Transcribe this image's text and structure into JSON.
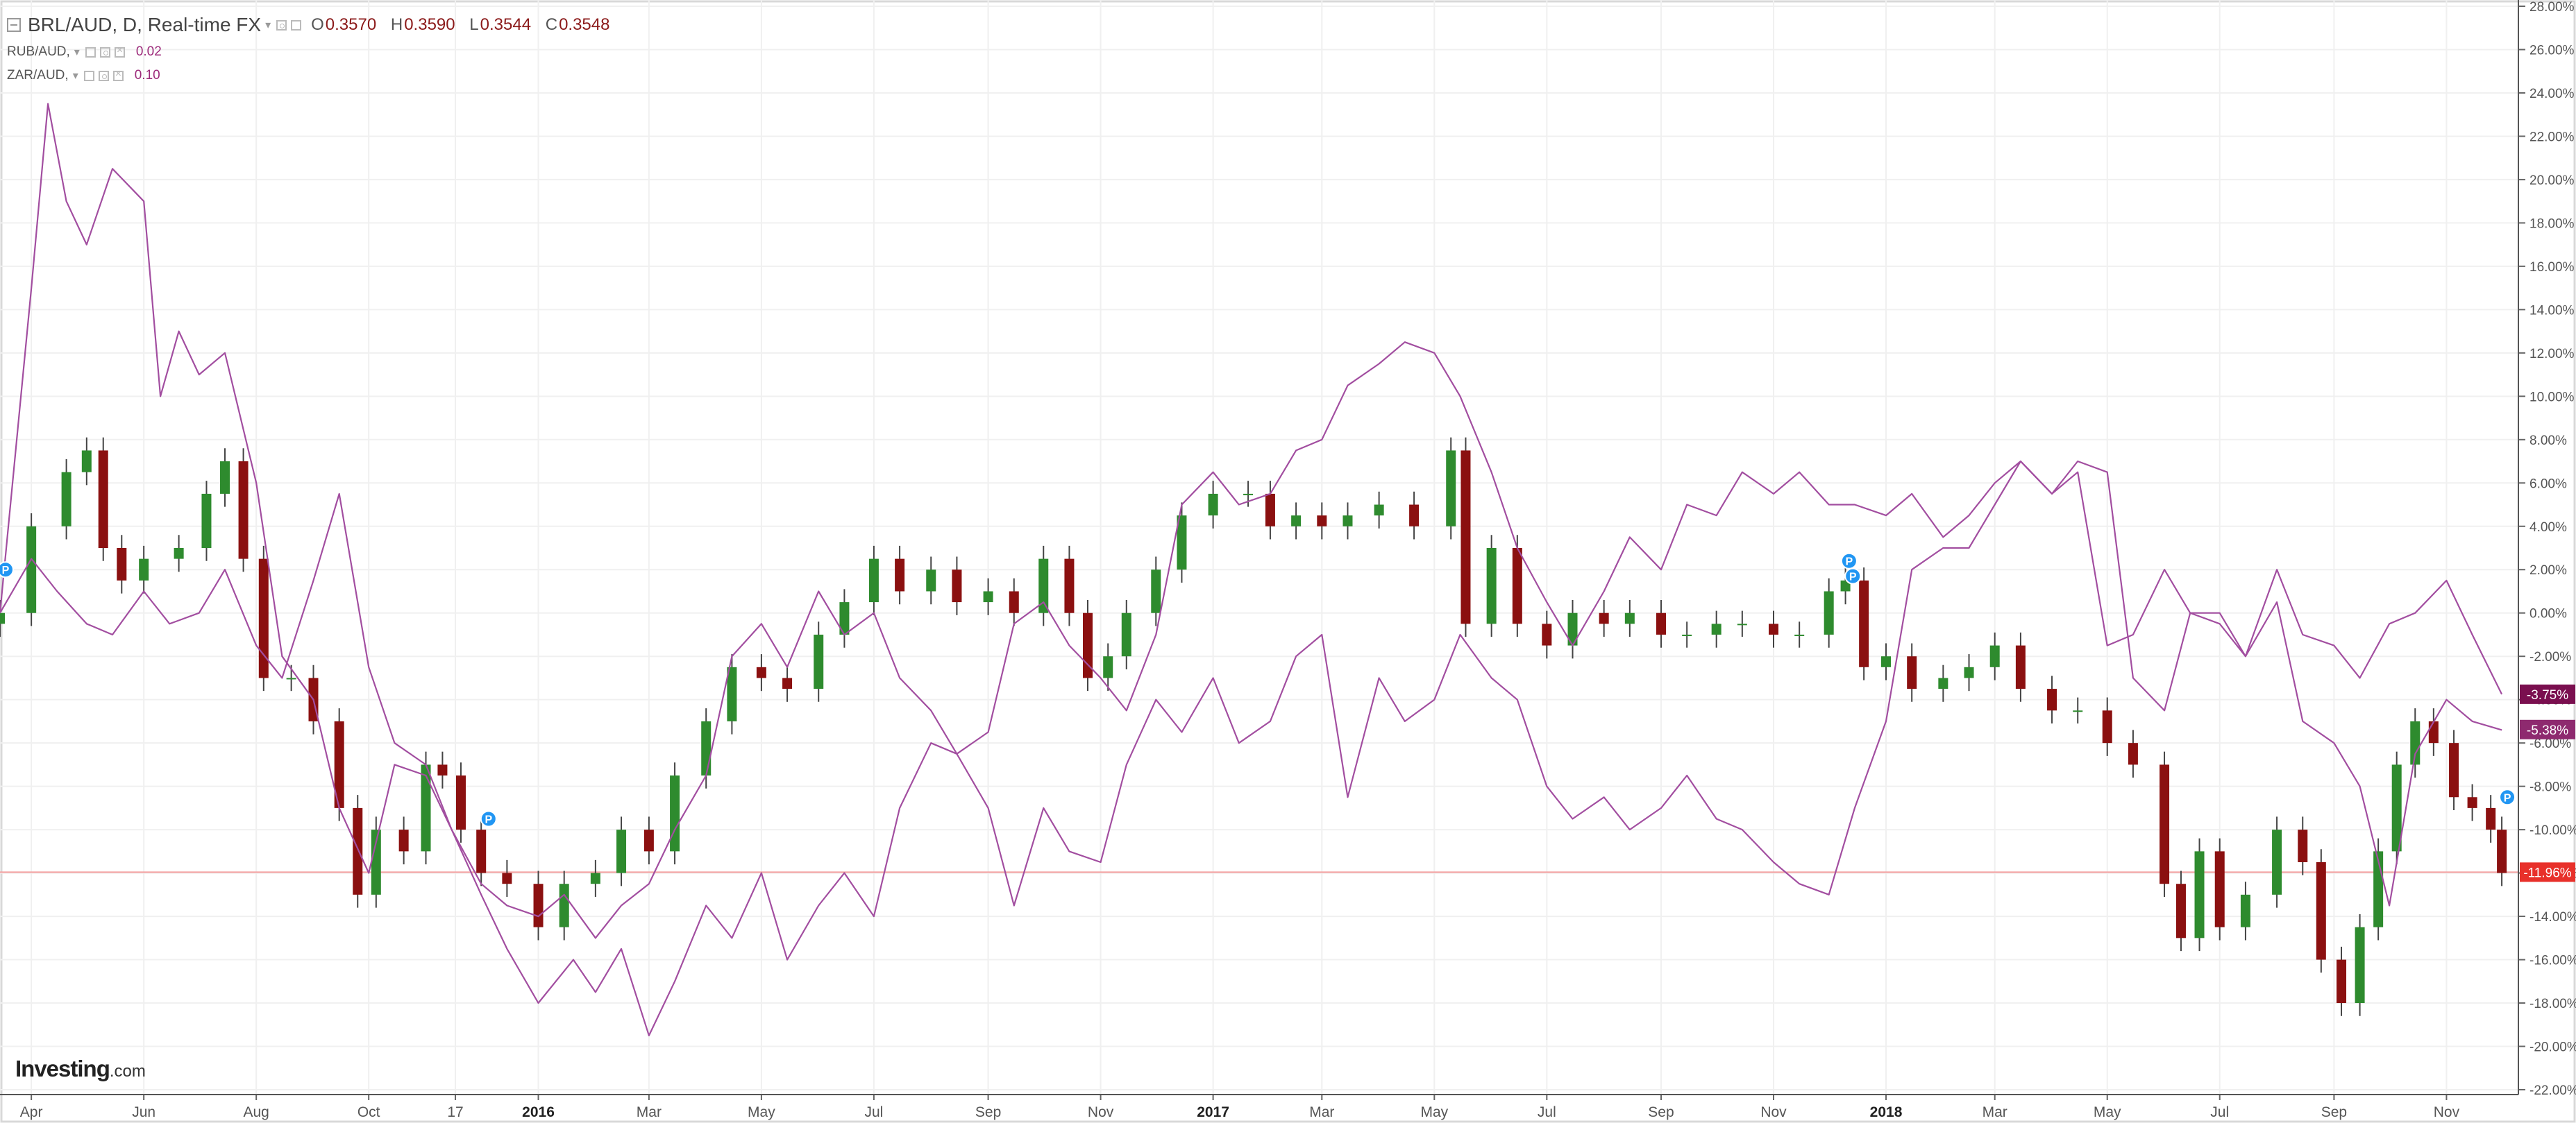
{
  "legend": {
    "main_symbol": "BRL/AUD, D, Real-time FX",
    "ohlc": [
      {
        "key": "O",
        "value": "0.3570"
      },
      {
        "key": "H",
        "value": "0.3590"
      },
      {
        "key": "L",
        "value": "0.3544"
      },
      {
        "key": "C",
        "value": "0.3548"
      }
    ],
    "compare": [
      {
        "symbol": "RUB/AUD,",
        "value": "0.02"
      },
      {
        "symbol": "ZAR/AUD,",
        "value": "0.10"
      }
    ]
  },
  "watermark": {
    "brand": "Investing",
    "suffix": ".com"
  },
  "colors": {
    "up": "#2e8b2e",
    "down": "#8b1010",
    "compare_line": "#a24ea0",
    "price_line": "#f4a0a0",
    "last_price_label": "#e8302a",
    "rub_label": "#7a0f4f",
    "zar_label": "#8e2a6f",
    "grid": "#f0f0f0",
    "axis_text": "#555555"
  },
  "chart_data": {
    "type": "line",
    "title": "BRL/AUD, D, Real-time FX",
    "ylabel": "",
    "xlabel": "",
    "y_unit": "%",
    "ylim": [
      -22,
      28
    ],
    "yticks": [
      "28.00%",
      "26.00%",
      "24.00%",
      "22.00%",
      "20.00%",
      "18.00%",
      "16.00%",
      "14.00%",
      "12.00%",
      "10.00%",
      "8.00%",
      "6.00%",
      "4.00%",
      "2.00%",
      "0.00%",
      "-2.00%",
      "-4.00%",
      "-6.00%",
      "-8.00%",
      "-10.00%",
      "-12.00%",
      "-14.00%",
      "-16.00%",
      "-18.00%",
      "-20.00%",
      "-22.00%"
    ],
    "x_tick_labels": [
      {
        "label": "Apr",
        "date": "2015-04-01",
        "bold": false
      },
      {
        "label": "Jun",
        "date": "2015-06-01",
        "bold": false
      },
      {
        "label": "Aug",
        "date": "2015-08-01",
        "bold": false
      },
      {
        "label": "Oct",
        "date": "2015-10-01",
        "bold": false
      },
      {
        "label": "17",
        "date": "2015-11-17",
        "bold": false
      },
      {
        "label": "2016",
        "date": "2016-01-01",
        "bold": true
      },
      {
        "label": "Mar",
        "date": "2016-03-01",
        "bold": false
      },
      {
        "label": "May",
        "date": "2016-05-01",
        "bold": false
      },
      {
        "label": "Jul",
        "date": "2016-07-01",
        "bold": false
      },
      {
        "label": "Sep",
        "date": "2016-09-01",
        "bold": false
      },
      {
        "label": "Nov",
        "date": "2016-11-01",
        "bold": false
      },
      {
        "label": "2017",
        "date": "2017-01-01",
        "bold": true
      },
      {
        "label": "Mar",
        "date": "2017-03-01",
        "bold": false
      },
      {
        "label": "May",
        "date": "2017-05-01",
        "bold": false
      },
      {
        "label": "Jul",
        "date": "2017-07-01",
        "bold": false
      },
      {
        "label": "Sep",
        "date": "2017-09-01",
        "bold": false
      },
      {
        "label": "Nov",
        "date": "2017-11-01",
        "bold": false
      },
      {
        "label": "2018",
        "date": "2018-01-01",
        "bold": true
      },
      {
        "label": "Mar",
        "date": "2018-03-01",
        "bold": false
      },
      {
        "label": "May",
        "date": "2018-05-01",
        "bold": false
      },
      {
        "label": "Jul",
        "date": "2018-07-01",
        "bold": false
      },
      {
        "label": "Sep",
        "date": "2018-09-01",
        "bold": false
      },
      {
        "label": "Nov",
        "date": "2018-11-01",
        "bold": false
      }
    ],
    "grid": true,
    "series": [
      {
        "name": "BRL/AUD",
        "style": "candlestick",
        "x": [
          "2015-03-15",
          "2015-04-01",
          "2015-04-20",
          "2015-05-01",
          "2015-05-10",
          "2015-05-20",
          "2015-06-01",
          "2015-06-20",
          "2015-07-05",
          "2015-07-15",
          "2015-07-25",
          "2015-08-05",
          "2015-08-20",
          "2015-09-01",
          "2015-09-15",
          "2015-09-25",
          "2015-10-05",
          "2015-10-20",
          "2015-11-01",
          "2015-11-10",
          "2015-11-20",
          "2015-12-01",
          "2015-12-15",
          "2016-01-01",
          "2016-01-15",
          "2016-02-01",
          "2016-02-15",
          "2016-03-01",
          "2016-03-15",
          "2016-04-01",
          "2016-04-15",
          "2016-05-01",
          "2016-05-15",
          "2016-06-01",
          "2016-06-15",
          "2016-07-01",
          "2016-07-15",
          "2016-08-01",
          "2016-08-15",
          "2016-09-01",
          "2016-09-15",
          "2016-10-01",
          "2016-10-15",
          "2016-10-25",
          "2016-11-05",
          "2016-11-15",
          "2016-12-01",
          "2016-12-15",
          "2017-01-01",
          "2017-01-20",
          "2017-02-01",
          "2017-02-15",
          "2017-03-01",
          "2017-03-15",
          "2017-04-01",
          "2017-04-20",
          "2017-05-10",
          "2017-05-18",
          "2017-06-01",
          "2017-06-15",
          "2017-07-01",
          "2017-07-15",
          "2017-08-01",
          "2017-08-15",
          "2017-09-01",
          "2017-09-15",
          "2017-10-01",
          "2017-10-15",
          "2017-11-01",
          "2017-11-15",
          "2017-12-01",
          "2017-12-10",
          "2017-12-20",
          "2018-01-01",
          "2018-01-15",
          "2018-02-01",
          "2018-02-15",
          "2018-03-01",
          "2018-03-15",
          "2018-04-01",
          "2018-04-15",
          "2018-05-01",
          "2018-05-15",
          "2018-06-01",
          "2018-06-10",
          "2018-06-20",
          "2018-07-01",
          "2018-07-15",
          "2018-08-01",
          "2018-08-15",
          "2018-08-25",
          "2018-09-05",
          "2018-09-15",
          "2018-09-25",
          "2018-10-05",
          "2018-10-15",
          "2018-10-25",
          "2018-11-05",
          "2018-11-15",
          "2018-11-25",
          "2018-12-01"
        ],
        "values": [
          0.0,
          4.0,
          6.5,
          7.5,
          3.0,
          1.5,
          2.5,
          3.0,
          5.5,
          7.0,
          2.5,
          -3.0,
          -3.0,
          -5.0,
          -9.0,
          -13.0,
          -10.0,
          -11.0,
          -7.0,
          -7.5,
          -10.0,
          -12.0,
          -12.5,
          -14.5,
          -12.5,
          -12.0,
          -10.0,
          -11.0,
          -7.5,
          -5.0,
          -2.5,
          -3.0,
          -3.5,
          -1.0,
          0.5,
          2.5,
          1.0,
          2.0,
          0.5,
          1.0,
          0.0,
          2.5,
          0.0,
          -3.0,
          -2.0,
          0.0,
          2.0,
          4.5,
          5.5,
          5.5,
          4.0,
          4.5,
          4.0,
          4.5,
          5.0,
          4.0,
          7.5,
          -0.5,
          3.0,
          -0.5,
          -1.5,
          0.0,
          -0.5,
          0.0,
          -1.0,
          -1.0,
          -0.5,
          -0.5,
          -1.0,
          -1.0,
          1.0,
          1.5,
          -2.5,
          -2.0,
          -3.5,
          -3.0,
          -2.5,
          -1.5,
          -3.5,
          -4.5,
          -4.5,
          -6.0,
          -7.0,
          -12.5,
          -15.0,
          -11.0,
          -14.5,
          -13.0,
          -10.0,
          -11.5,
          -16.0,
          -18.0,
          -14.5,
          -11.0,
          -7.0,
          -5.0,
          -6.0,
          -8.5,
          -9.0,
          -10.0,
          -12.0
        ]
      },
      {
        "name": "RUB/AUD",
        "style": "line",
        "x": [
          "2015-03-15",
          "2015-04-01",
          "2015-04-10",
          "2015-04-20",
          "2015-05-01",
          "2015-05-15",
          "2015-06-01",
          "2015-06-10",
          "2015-06-20",
          "2015-07-01",
          "2015-07-15",
          "2015-08-01",
          "2015-08-15",
          "2015-09-01",
          "2015-09-15",
          "2015-10-01",
          "2015-10-15",
          "2015-11-01",
          "2015-11-15",
          "2015-12-01",
          "2015-12-15",
          "2016-01-01",
          "2016-01-20",
          "2016-02-01",
          "2016-02-15",
          "2016-03-01",
          "2016-03-15",
          "2016-04-01",
          "2016-04-15",
          "2016-05-01",
          "2016-05-15",
          "2016-06-01",
          "2016-06-15",
          "2016-07-01",
          "2016-07-15",
          "2016-08-01",
          "2016-08-15",
          "2016-09-01",
          "2016-09-15",
          "2016-10-01",
          "2016-10-15",
          "2016-11-01",
          "2016-11-15",
          "2016-12-01",
          "2016-12-15",
          "2017-01-01",
          "2017-01-15",
          "2017-02-01",
          "2017-02-15",
          "2017-03-01",
          "2017-03-15",
          "2017-04-01",
          "2017-04-15",
          "2017-05-01",
          "2017-05-15",
          "2017-06-01",
          "2017-06-15",
          "2017-07-01",
          "2017-07-15",
          "2017-08-01",
          "2017-08-15",
          "2017-09-01",
          "2017-09-15",
          "2017-10-01",
          "2017-10-15",
          "2017-11-01",
          "2017-11-15",
          "2017-12-01",
          "2017-12-15",
          "2018-01-01",
          "2018-01-15",
          "2018-02-01",
          "2018-02-15",
          "2018-03-01",
          "2018-03-15",
          "2018-04-01",
          "2018-04-15",
          "2018-05-01",
          "2018-05-15",
          "2018-06-01",
          "2018-06-15",
          "2018-07-01",
          "2018-07-15",
          "2018-08-01",
          "2018-08-15",
          "2018-09-01",
          "2018-09-15",
          "2018-10-01",
          "2018-10-15",
          "2018-11-01",
          "2018-11-15",
          "2018-12-01"
        ],
        "values": [
          0.0,
          15.0,
          23.5,
          19.0,
          17.0,
          20.5,
          19.0,
          10.0,
          13.0,
          11.0,
          12.0,
          6.0,
          -2.0,
          -4.0,
          -9.0,
          -12.0,
          -7.0,
          -7.5,
          -10.0,
          -13.0,
          -15.5,
          -18.0,
          -16.0,
          -17.5,
          -15.5,
          -19.5,
          -17.0,
          -13.5,
          -15.0,
          -12.0,
          -16.0,
          -13.5,
          -12.0,
          -14.0,
          -9.0,
          -6.0,
          -6.5,
          -9.0,
          -13.5,
          -9.0,
          -11.0,
          -11.5,
          -7.0,
          -4.0,
          -5.5,
          -3.0,
          -6.0,
          -5.0,
          -2.0,
          -1.0,
          -8.5,
          -3.0,
          -5.0,
          -4.0,
          -1.0,
          -3.0,
          -4.0,
          -8.0,
          -9.5,
          -8.5,
          -10.0,
          -9.0,
          -7.5,
          -9.5,
          -10.0,
          -11.5,
          -12.5,
          -13.0,
          -9.0,
          -5.0,
          2.0,
          3.0,
          3.0,
          5.0,
          7.0,
          5.5,
          7.0,
          6.5,
          -3.0,
          -4.5,
          0.0,
          0.0,
          -2.0,
          0.5,
          -5.0,
          -6.0,
          -8.0,
          -13.5,
          -6.5,
          -4.0,
          -5.0,
          -5.4
        ]
      },
      {
        "name": "ZAR/AUD",
        "style": "line",
        "x": [
          "2015-03-15",
          "2015-04-01",
          "2015-04-15",
          "2015-05-01",
          "2015-05-15",
          "2015-06-01",
          "2015-06-15",
          "2015-07-01",
          "2015-07-15",
          "2015-08-01",
          "2015-08-15",
          "2015-09-01",
          "2015-09-15",
          "2015-10-01",
          "2015-10-15",
          "2015-11-01",
          "2015-11-15",
          "2015-12-01",
          "2015-12-15",
          "2016-01-01",
          "2016-01-15",
          "2016-02-01",
          "2016-02-15",
          "2016-03-01",
          "2016-03-15",
          "2016-04-01",
          "2016-04-15",
          "2016-05-01",
          "2016-05-15",
          "2016-06-01",
          "2016-06-15",
          "2016-07-01",
          "2016-07-15",
          "2016-08-01",
          "2016-08-15",
          "2016-09-01",
          "2016-09-15",
          "2016-10-01",
          "2016-10-15",
          "2016-11-01",
          "2016-11-15",
          "2016-12-01",
          "2016-12-15",
          "2017-01-01",
          "2017-01-15",
          "2017-02-01",
          "2017-02-15",
          "2017-03-01",
          "2017-03-15",
          "2017-04-01",
          "2017-04-15",
          "2017-05-01",
          "2017-05-15",
          "2017-06-01",
          "2017-06-15",
          "2017-07-01",
          "2017-07-15",
          "2017-08-01",
          "2017-08-15",
          "2017-09-01",
          "2017-09-15",
          "2017-10-01",
          "2017-10-15",
          "2017-11-01",
          "2017-11-15",
          "2017-12-01",
          "2017-12-15",
          "2018-01-01",
          "2018-01-15",
          "2018-02-01",
          "2018-02-15",
          "2018-03-01",
          "2018-03-15",
          "2018-04-01",
          "2018-04-15",
          "2018-05-01",
          "2018-05-15",
          "2018-06-01",
          "2018-06-15",
          "2018-07-01",
          "2018-07-15",
          "2018-08-01",
          "2018-08-15",
          "2018-09-01",
          "2018-09-15",
          "2018-10-01",
          "2018-10-15",
          "2018-11-01",
          "2018-11-15",
          "2018-12-01"
        ],
        "values": [
          0.0,
          2.5,
          1.0,
          -0.5,
          -1.0,
          1.0,
          -0.5,
          0.0,
          2.0,
          -1.5,
          -3.0,
          1.5,
          5.5,
          -2.5,
          -6.0,
          -7.0,
          -10.0,
          -12.5,
          -13.5,
          -14.0,
          -13.0,
          -15.0,
          -13.5,
          -12.5,
          -10.0,
          -7.5,
          -2.0,
          -0.5,
          -2.5,
          1.0,
          -1.0,
          0.0,
          -3.0,
          -4.5,
          -6.5,
          -5.5,
          -0.5,
          0.5,
          -1.5,
          -3.0,
          -4.5,
          -1.0,
          5.0,
          6.5,
          5.0,
          5.5,
          7.5,
          8.0,
          10.5,
          11.5,
          12.5,
          12.0,
          10.0,
          6.5,
          3.0,
          0.5,
          -1.5,
          1.0,
          3.5,
          2.0,
          5.0,
          4.5,
          6.5,
          5.5,
          6.5,
          5.0,
          5.0,
          4.5,
          5.5,
          3.5,
          4.5,
          6.0,
          7.0,
          5.5,
          6.5,
          -1.5,
          -1.0,
          2.0,
          0.0,
          -0.5,
          -2.0,
          2.0,
          -1.0,
          -1.5,
          -3.0,
          -0.5,
          0.0,
          1.5,
          -1.0,
          -3.75
        ]
      }
    ],
    "reference_line": {
      "value": -11.96
    },
    "last_value_labels": [
      {
        "series": "ZAR/AUD",
        "text": "-3.75%",
        "value": -3.75
      },
      {
        "series": "RUB/AUD",
        "text": "-5.38%",
        "value": -5.38
      },
      {
        "series": "BRL/AUD",
        "text": "-11.96%",
        "value": -11.96
      }
    ],
    "event_markers": [
      {
        "label": "P",
        "date": "2015-03-18",
        "value": 2.0
      },
      {
        "label": "P",
        "date": "2015-12-05",
        "value": -9.5
      },
      {
        "label": "P",
        "date": "2017-12-12",
        "value": 2.4
      },
      {
        "label": "P",
        "date": "2017-12-14",
        "value": 1.7
      },
      {
        "label": "P",
        "date": "2018-12-04",
        "value": -8.5
      }
    ]
  }
}
